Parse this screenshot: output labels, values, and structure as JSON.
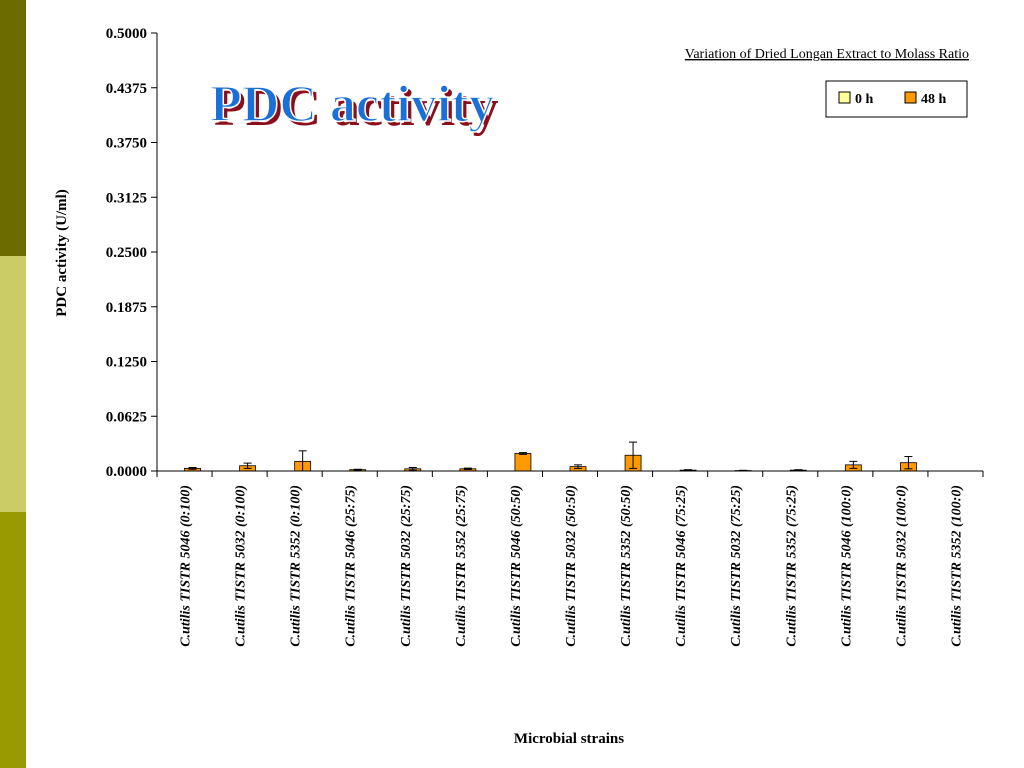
{
  "colors": {
    "sidebar": [
      "#6b6b00",
      "#cccc66",
      "#999900"
    ],
    "bar_0h": "#ffff99",
    "bar_48h": "#ff9900",
    "title_fill": "#1a6fd8",
    "title_shadow": "#8b0f1a"
  },
  "chart_data": {
    "type": "bar",
    "title": "PDC activity",
    "subtitle": "Variation of Dried Longan Extract to Molass Ratio",
    "xlabel": "Microbial strains",
    "ylabel": "PDC activity (U/ml)",
    "ylim": [
      0,
      0.5
    ],
    "yticks": [
      "0.0000",
      "0.0625",
      "0.1250",
      "0.1875",
      "0.2500",
      "0.3125",
      "0.3750",
      "0.4375",
      "0.5000"
    ],
    "legend_position": "top-right",
    "categories": [
      "C.utilis TISTR 5046 (0:100)",
      "C.utilis TISTR 5032 (0:100)",
      "C.utilis TISTR 5352 (0:100)",
      "C.utilis TISTR 5046 (25:75)",
      "C.utilis TISTR 5032 (25:75)",
      "C.utilis TISTR 5352 (25:75)",
      "C.utilis TISTR 5046 (50:50)",
      "C.utilis TISTR 5032 (50:50)",
      "C.utilis TISTR 5352 (50:50)",
      "C.utilis TISTR 5046 (75:25)",
      "C.utilis TISTR 5032 (75:25)",
      "C.utilis TISTR 5352 (75:25)",
      "C.utilis TISTR 5046 (100:0)",
      "C.utilis TISTR 5032 (100:0)",
      "C.utilis TISTR 5352 (100:0)"
    ],
    "series": [
      {
        "name": "0 h",
        "values": [
          0,
          0,
          0,
          0,
          0,
          0,
          0,
          0,
          0,
          0,
          0,
          0,
          0,
          0,
          0
        ],
        "errors": [
          0,
          0,
          0,
          0,
          0,
          0,
          0,
          0,
          0,
          0,
          0,
          0,
          0,
          0,
          0
        ]
      },
      {
        "name": "48 h",
        "values": [
          0.003,
          0.006,
          0.011,
          0.0015,
          0.0025,
          0.0025,
          0.02,
          0.005,
          0.018,
          0.001,
          0.0005,
          0.001,
          0.007,
          0.0095,
          0
        ],
        "errors": [
          0.001,
          0.003,
          0.012,
          0.0005,
          0.0015,
          0.0008,
          0.001,
          0.002,
          0.015,
          0.0005,
          0.0003,
          0.0005,
          0.004,
          0.007,
          0
        ]
      }
    ]
  }
}
